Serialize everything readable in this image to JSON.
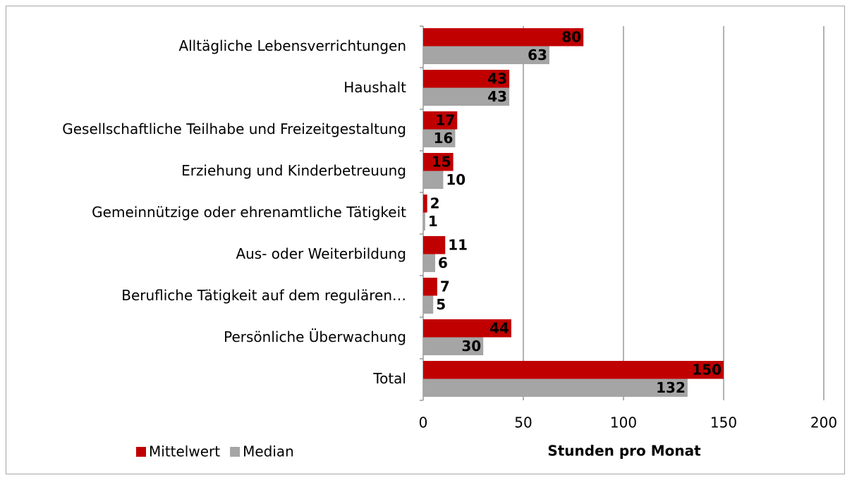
{
  "chart_data": {
    "type": "bar",
    "orientation": "horizontal",
    "xlabel": "Stunden pro Monat",
    "categories": [
      "Alltägliche Lebensverrichtungen",
      "Haushalt",
      "Gesellschaftliche Teilhabe und Freizeitgestaltung",
      "Erziehung und Kinderbetreuung",
      "Gemeinnützige oder ehrenamtliche Tätigkeit",
      "Aus- oder Weiterbildung",
      "Berufliche Tätigkeit auf dem regulären…",
      "Persönliche Überwachung",
      "Total"
    ],
    "series": [
      {
        "name": "Mittelwert",
        "color": "#c00000",
        "values": [
          80,
          43,
          17,
          15,
          2,
          11,
          7,
          44,
          150
        ]
      },
      {
        "name": "Median",
        "color": "#a5a5a5",
        "values": [
          63,
          43,
          16,
          10,
          1,
          6,
          5,
          30,
          132
        ]
      }
    ],
    "xlim": [
      0,
      200
    ],
    "xticks": [
      0,
      50,
      100,
      150,
      200
    ],
    "grid": true,
    "legend": "bottom-left"
  }
}
